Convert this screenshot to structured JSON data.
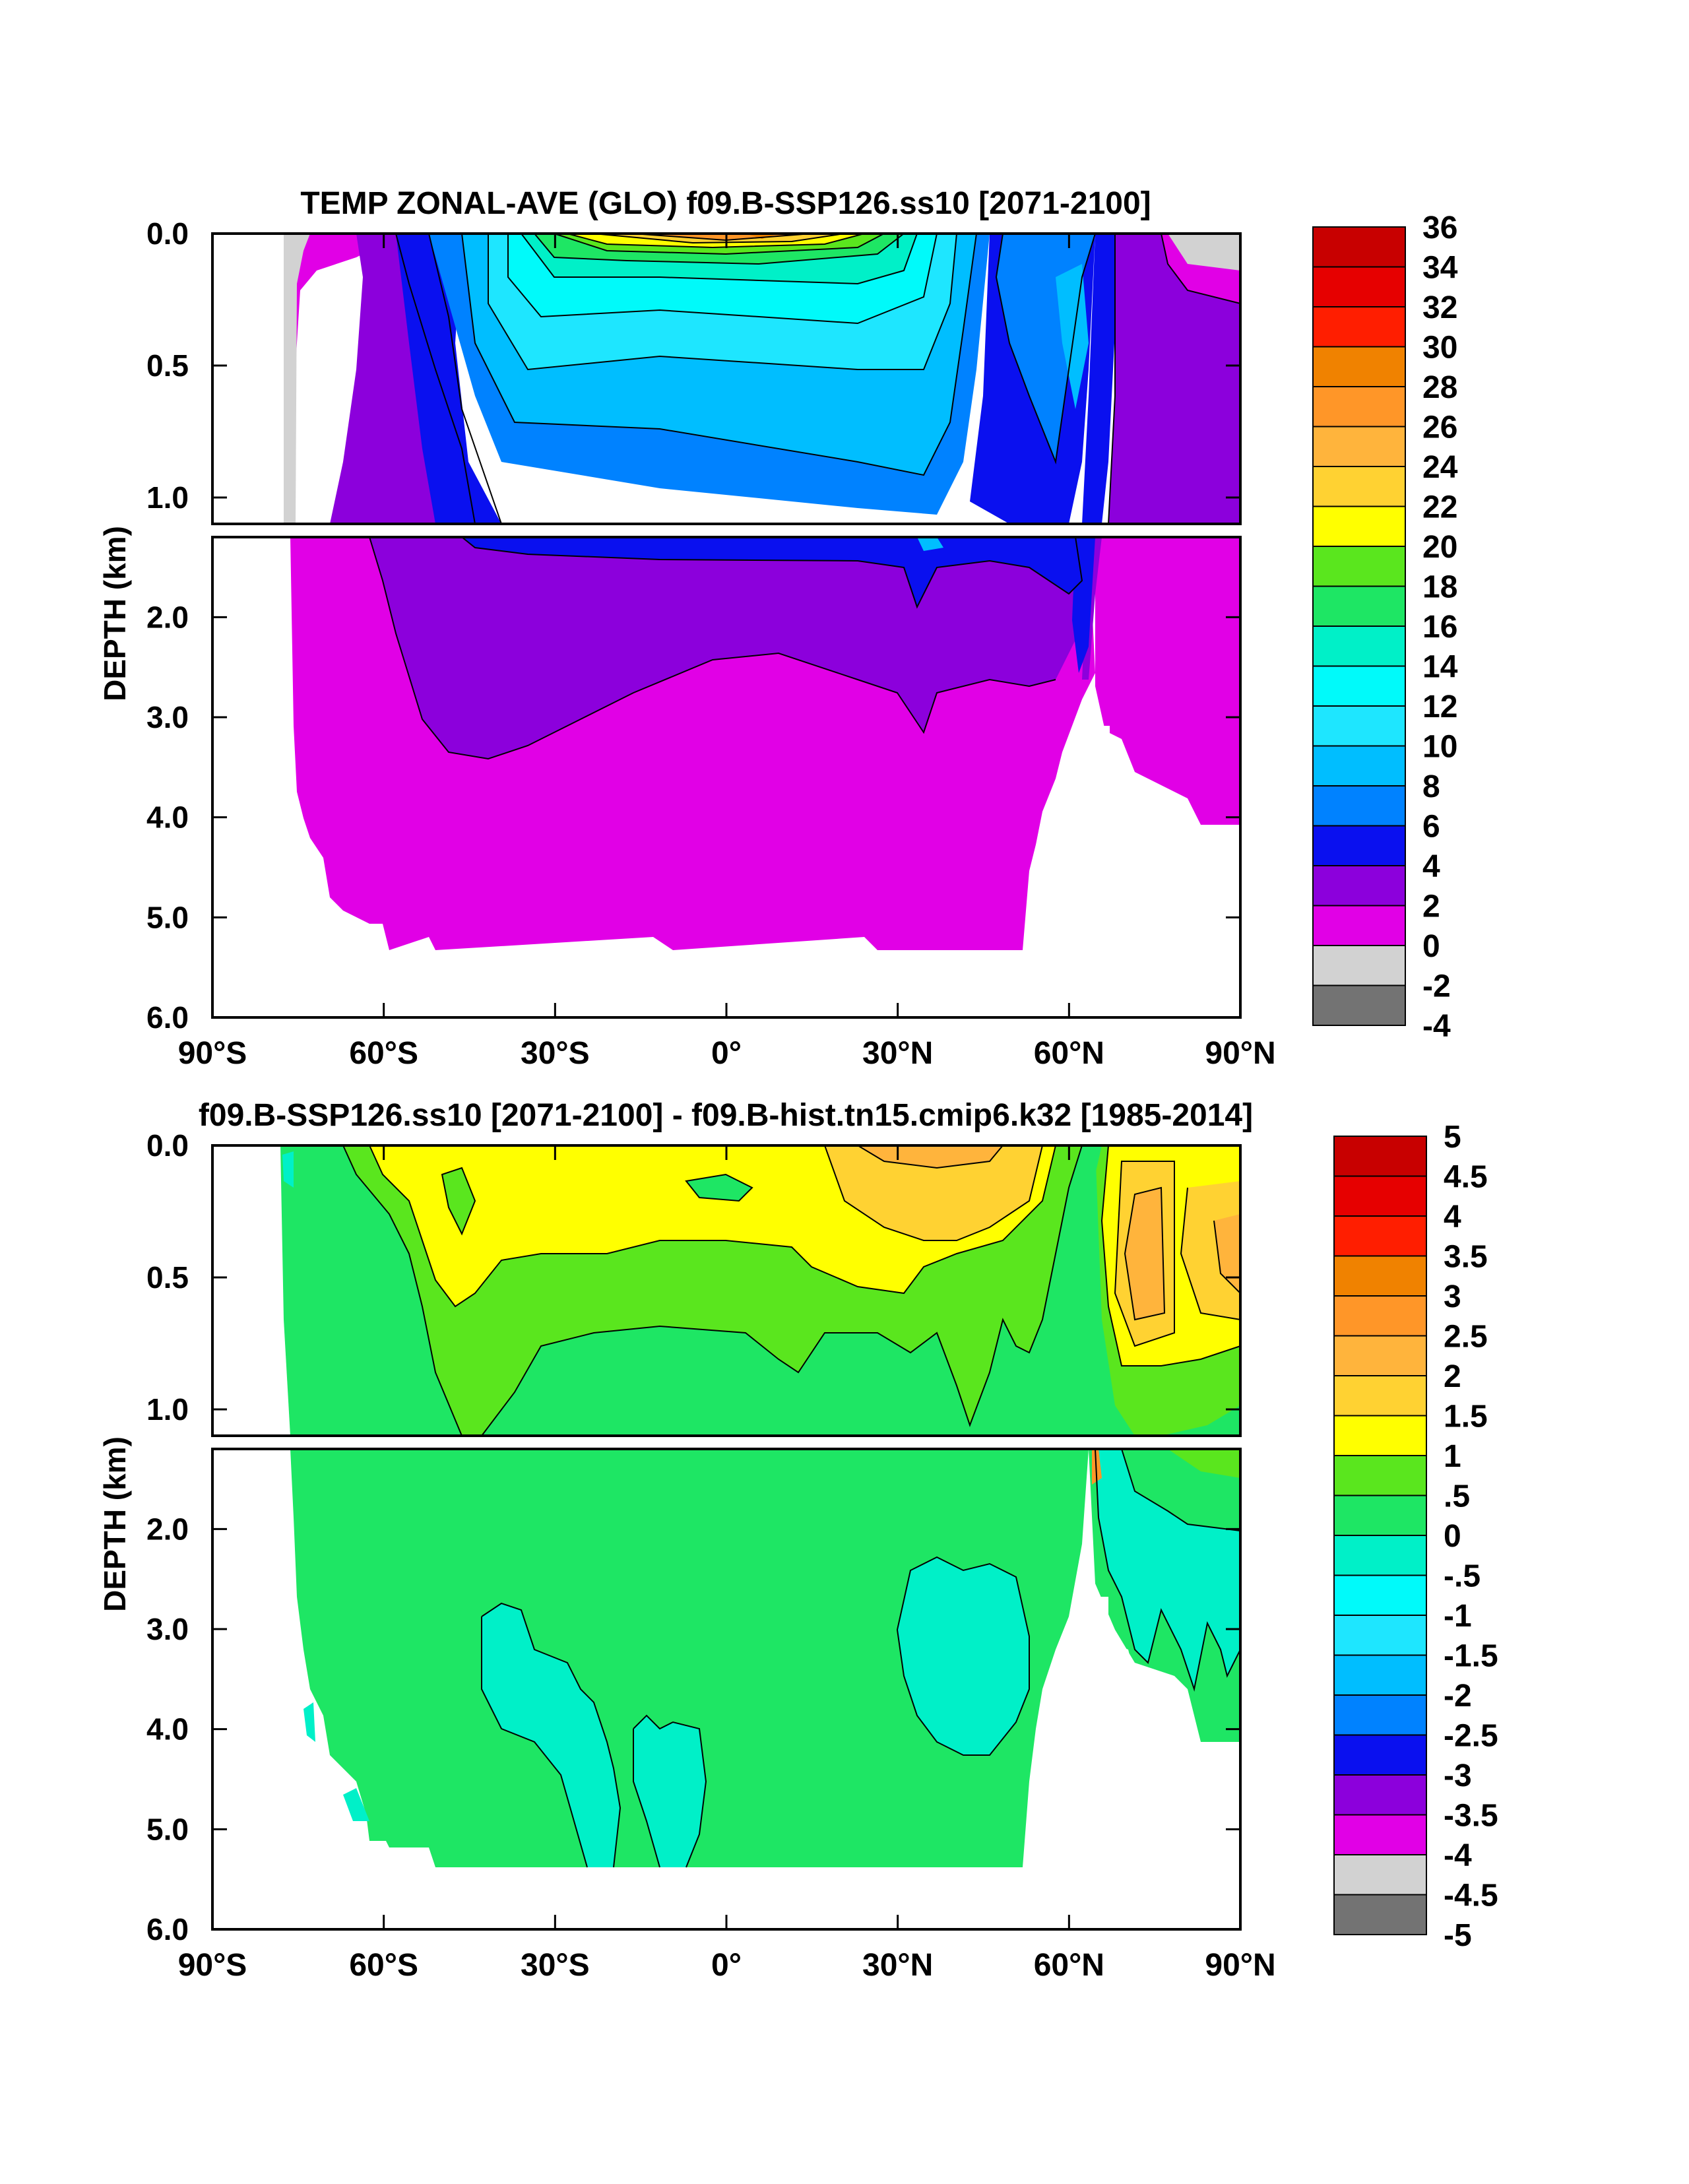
{
  "chart_data": [
    {
      "type": "heatmap",
      "subtype": "filled-contour depth-latitude section",
      "title": "TEMP ZONAL-AVE (GLO) f09.B-SSP126.ss10 [2071-2100]",
      "xlabel": "",
      "ylabel": "DEPTH (km)",
      "x_ticks": [
        "90°S",
        "60°S",
        "30°S",
        "0°",
        "30°N",
        "60°N",
        "90°N"
      ],
      "x_tick_values": [
        -90,
        -60,
        -30,
        0,
        30,
        60,
        90
      ],
      "xlim": [
        -90,
        90
      ],
      "y_ticks_upper": [
        "0.0",
        "0.5",
        "1.0"
      ],
      "y_tick_values_upper": [
        0.0,
        0.5,
        1.0
      ],
      "ylim_upper": [
        0.0,
        1.1
      ],
      "y_ticks_lower": [
        "2.0",
        "3.0",
        "4.0",
        "5.0",
        "6.0"
      ],
      "y_tick_values_lower": [
        2.0,
        3.0,
        4.0,
        5.0,
        6.0
      ],
      "ylim_lower": [
        1.2,
        6.0
      ],
      "colorbar_labels": [
        "36",
        "34",
        "32",
        "30",
        "28",
        "26",
        "24",
        "22",
        "20",
        "18",
        "16",
        "14",
        "12",
        "10",
        "8",
        "6",
        "4",
        "2",
        "0",
        "-2",
        "-4"
      ],
      "colorbar_colors": [
        "#c80000",
        "#e60000",
        "#ff1e00",
        "#f08200",
        "#ff9628",
        "#ffb43c",
        "#ffd232",
        "#ffff00",
        "#5ae61e",
        "#1ee664",
        "#00f0c8",
        "#00fafa",
        "#1ee6ff",
        "#00beff",
        "#0082ff",
        "#0a10ef",
        "#8c00dc",
        "#e100e6",
        "#d2d2d2",
        "#737373"
      ],
      "background_class": "2 to 0 °C (magenta)"
    },
    {
      "type": "heatmap",
      "subtype": "filled-contour depth-latitude section (difference)",
      "title": "f09.B-SSP126.ss10 [2071-2100] - f09.B-hist.tn15.cmip6.k32 [1985-2014]",
      "xlabel": "",
      "ylabel": "DEPTH (km)",
      "x_ticks": [
        "90°S",
        "60°S",
        "30°S",
        "0°",
        "30°N",
        "60°N",
        "90°N"
      ],
      "x_tick_values": [
        -90,
        -60,
        -30,
        0,
        30,
        60,
        90
      ],
      "xlim": [
        -90,
        90
      ],
      "y_ticks_upper": [
        "0.0",
        "0.5",
        "1.0"
      ],
      "y_tick_values_upper": [
        0.0,
        0.5,
        1.0
      ],
      "ylim_upper": [
        0.0,
        1.1
      ],
      "y_ticks_lower": [
        "2.0",
        "3.0",
        "4.0",
        "5.0",
        "6.0"
      ],
      "y_tick_values_lower": [
        2.0,
        3.0,
        4.0,
        5.0,
        6.0
      ],
      "ylim_lower": [
        1.2,
        6.0
      ],
      "colorbar_labels": [
        "5",
        "4.5",
        "4",
        "3.5",
        "3",
        "2.5",
        "2",
        "1.5",
        "1",
        ".5",
        "0",
        "-.5",
        "-1",
        "-1.5",
        "-2",
        "-2.5",
        "-3",
        "-3.5",
        "-4",
        "-4.5",
        "-5"
      ],
      "colorbar_colors": [
        "#c80000",
        "#e60000",
        "#ff1e00",
        "#f08200",
        "#ff9628",
        "#ffb43c",
        "#ffd232",
        "#ffff00",
        "#5ae61e",
        "#1ee664",
        "#00f0c8",
        "#00fafa",
        "#1ee6ff",
        "#00beff",
        "#0082ff",
        "#0a10ef",
        "#8c00dc",
        "#e100e6",
        "#d2d2d2",
        "#737373"
      ],
      "background_class": "0 to .5 (green)"
    }
  ]
}
